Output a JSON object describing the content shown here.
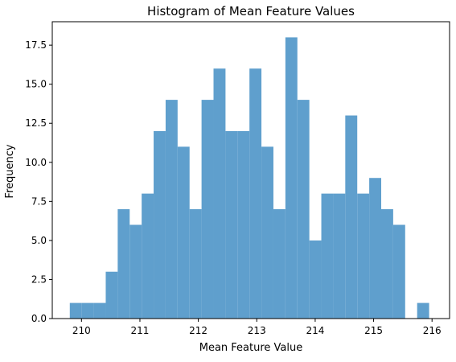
{
  "chart_data": {
    "type": "bar",
    "title": "Histogram of Mean Feature Values",
    "xlabel": "Mean Feature Value",
    "ylabel": "Frequency",
    "xlim": [
      209.5,
      216.3
    ],
    "ylim": [
      0,
      19
    ],
    "grid": false,
    "legend": "none",
    "bar_color": "#5f9fcd",
    "x_ticks": [
      {
        "value": 210,
        "label": "210"
      },
      {
        "value": 211,
        "label": "211"
      },
      {
        "value": 212,
        "label": "212"
      },
      {
        "value": 213,
        "label": "213"
      },
      {
        "value": 214,
        "label": "214"
      },
      {
        "value": 215,
        "label": "215"
      },
      {
        "value": 216,
        "label": "216"
      }
    ],
    "y_ticks": [
      {
        "value": 0,
        "label": "0.0"
      },
      {
        "value": 2.5,
        "label": "2.5"
      },
      {
        "value": 5,
        "label": "5.0"
      },
      {
        "value": 7.5,
        "label": "7.5"
      },
      {
        "value": 10,
        "label": "10.0"
      },
      {
        "value": 12.5,
        "label": "12.5"
      },
      {
        "value": 15,
        "label": "15.0"
      },
      {
        "value": 17.5,
        "label": "17.5"
      }
    ],
    "bin_edges": [
      209.8,
      210.005,
      210.21,
      210.415,
      210.62,
      210.825,
      211.03,
      211.235,
      211.44,
      211.645,
      211.85,
      212.055,
      212.26,
      212.465,
      212.67,
      212.875,
      213.08,
      213.285,
      213.49,
      213.695,
      213.9,
      214.105,
      214.31,
      214.515,
      214.72,
      214.925,
      215.13,
      215.335,
      215.54,
      215.745,
      215.95
    ],
    "values": [
      1,
      1,
      1,
      3,
      7,
      6,
      8,
      12,
      14,
      11,
      7,
      14,
      16,
      12,
      12,
      16,
      11,
      7,
      18,
      14,
      5,
      8,
      8,
      13,
      8,
      9,
      7,
      6,
      0,
      1
    ]
  }
}
